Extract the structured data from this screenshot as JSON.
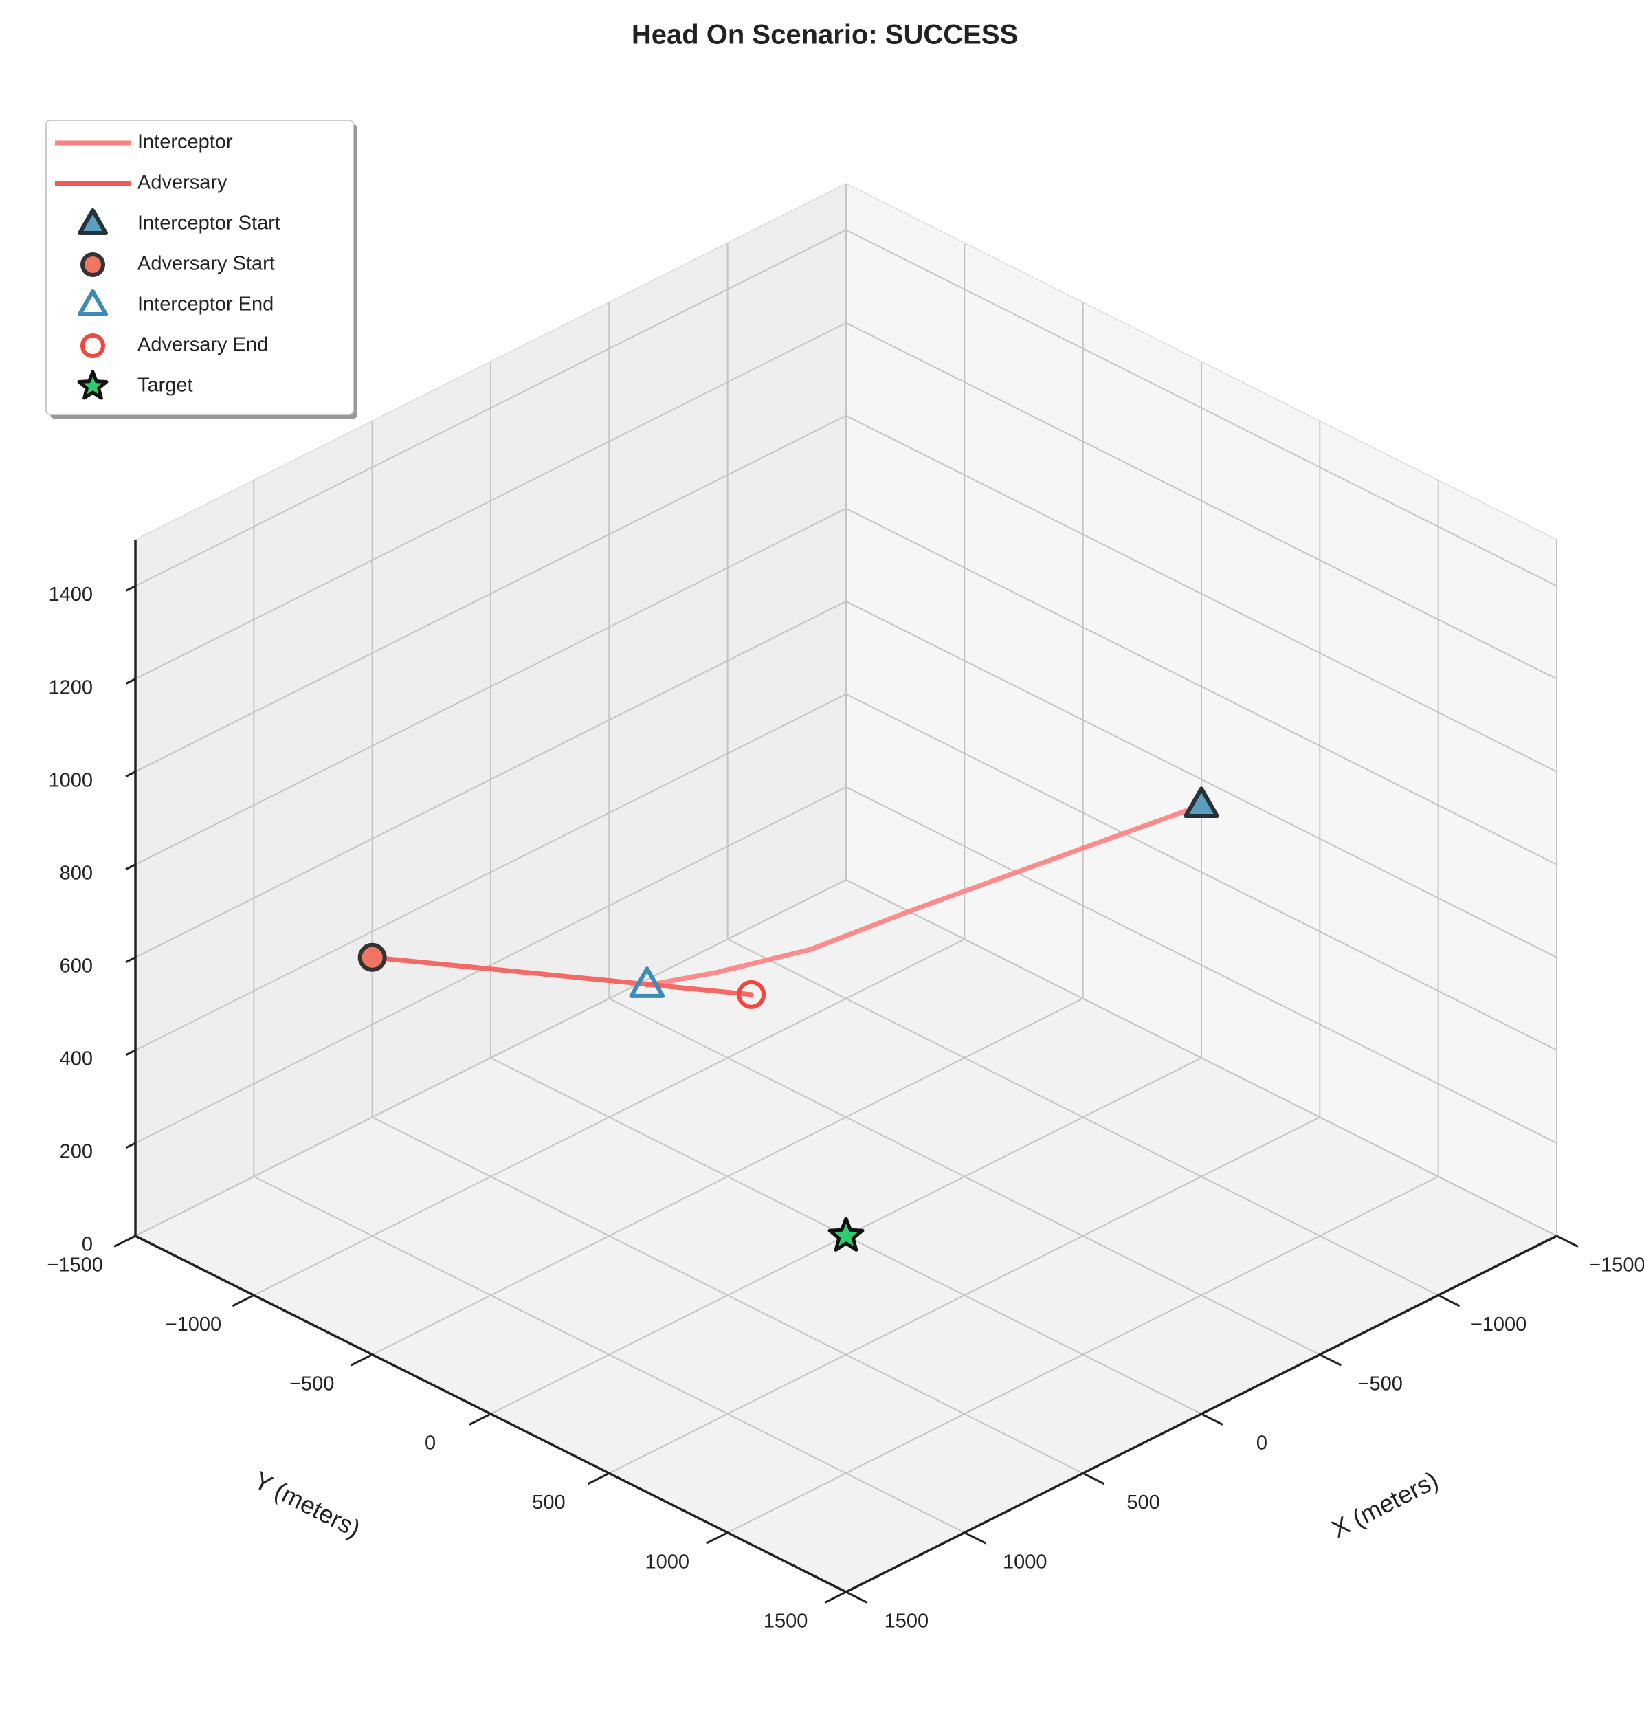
{
  "chart_data": {
    "type": "line3d",
    "title": "Head On Scenario: SUCCESS",
    "xlabel": "X (meters)",
    "ylabel": "Y (meters)",
    "xlim": [
      -1500,
      1500
    ],
    "ylim": [
      -1500,
      1500
    ],
    "zlim": [
      0,
      1500
    ],
    "xticks": [
      {
        "value": -1500,
        "label": "−1500"
      },
      {
        "value": -1000,
        "label": "−1000"
      },
      {
        "value": -500,
        "label": "−500"
      },
      0,
      500,
      1000,
      1500
    ],
    "yticks": [
      {
        "value": -1500,
        "label": "−1500"
      },
      {
        "value": -1000,
        "label": "−1000"
      },
      {
        "value": -500,
        "label": "−500"
      },
      0,
      500,
      1000,
      1500
    ],
    "zticks": [
      0,
      200,
      400,
      600,
      800,
      1000,
      1200,
      1400
    ],
    "grid": true,
    "legend": "upper left",
    "series": [
      {
        "name": "Interceptor",
        "color": "#ff7f7f",
        "x": [
          -1000,
          -600,
          -200,
          100,
          300,
          420
        ],
        "y": [
          500,
          300,
          100,
          -50,
          -250,
          -420
        ],
        "z": [
          800,
          740,
          680,
          630,
          580,
          540
        ]
      },
      {
        "name": "Adversary",
        "color": "#f25a55",
        "x": [
          1000,
          600,
          200
        ],
        "y": [
          -1000,
          -600,
          -200
        ],
        "z": [
          600,
          560,
          520
        ]
      }
    ],
    "markers": [
      {
        "name": "Interceptor Start",
        "marker": "triangle",
        "filled": true,
        "color": "#5a9fc0",
        "edgecolor": "#263238",
        "x": -1000,
        "y": 500,
        "z": 800
      },
      {
        "name": "Adversary Start",
        "marker": "circle",
        "filled": true,
        "color": "#f07565",
        "edgecolor": "#333333",
        "x": 1000,
        "y": -1000,
        "z": 600
      },
      {
        "name": "Interceptor End",
        "marker": "triangle",
        "filled": false,
        "color": "#3d8bb7",
        "edgecolor": "#3d8bb7",
        "x": 420,
        "y": -420,
        "z": 540
      },
      {
        "name": "Adversary End",
        "marker": "circle",
        "filled": false,
        "color": "#f2473f",
        "edgecolor": "#f2473f",
        "x": 200,
        "y": -200,
        "z": 520
      },
      {
        "name": "Target",
        "marker": "star",
        "filled": true,
        "color": "#2ecc71",
        "edgecolor": "#111111",
        "x": 0,
        "y": 0,
        "z": 0
      }
    ]
  }
}
